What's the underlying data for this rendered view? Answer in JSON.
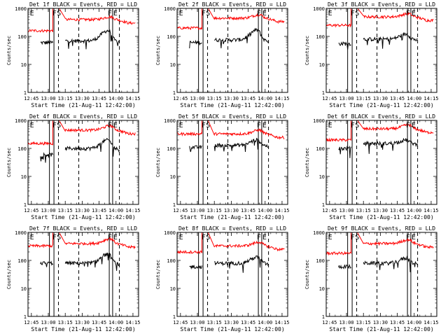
{
  "figure": {
    "background": "#ffffff",
    "axis_color": "#000000",
    "events_color": "#000000",
    "lld_color": "#ff0000"
  },
  "chart_data": [
    {
      "type": "line",
      "title": "Det 1f BLACK = Events, RED = LLD",
      "xlabel": "Start Time (21-Aug-11 12:42:00)",
      "ylabel": "Counts/sec",
      "yscale": "log",
      "ylim": [
        1,
        1000
      ],
      "xlim": [
        "12:42",
        "14:20"
      ],
      "xtick_labels": [
        "12:45",
        "13:00",
        "13:15",
        "13:30",
        "13:45",
        "14:00",
        "14:15"
      ],
      "ytick_labels": [
        "1",
        "10",
        "100",
        "1000"
      ],
      "markers": [
        {
          "label": "E",
          "time": "12:43"
        },
        {
          "label": "F",
          "time": "13:03"
        },
        {
          "label": "S",
          "time": "13:07"
        },
        {
          "label": "F",
          "time": "13:52"
        },
        {
          "label": "E",
          "time": "13:57"
        }
      ],
      "vlines": {
        "solid": [
          "13:01",
          "13:05",
          "13:54",
          "13:57"
        ],
        "dashed": [
          "13:09",
          "13:27",
          "14:03"
        ]
      },
      "series": [
        {
          "name": "Events",
          "color": "#000000",
          "segments": [
            {
              "start": "12:53",
              "end": "13:04",
              "level": 60
            },
            {
              "start": "13:15",
              "end": "14:03",
              "level": 70,
              "peak": {
                "time": "13:53",
                "value": 160
              }
            }
          ]
        },
        {
          "name": "LLD",
          "color": "#ff0000",
          "segments": [
            {
              "start": "12:42",
              "end": "13:04",
              "level": 160
            },
            {
              "start": "13:04",
              "end": "13:09",
              "level": 1100
            },
            {
              "start": "13:15",
              "end": "14:17",
              "level": 400,
              "peak": {
                "time": "13:55",
                "value": 500
              }
            }
          ]
        }
      ]
    },
    {
      "type": "line",
      "title": "Det 2f BLACK = Events, RED = LLD",
      "xlabel": "Start Time (21-Aug-11 12:42:00)",
      "ylabel": "Counts/sec",
      "yscale": "log",
      "ylim": [
        1,
        1000
      ],
      "xlim": [
        "12:42",
        "14:20"
      ],
      "xtick_labels": [
        "12:45",
        "13:00",
        "13:15",
        "13:30",
        "13:45",
        "14:00",
        "14:15"
      ],
      "ytick_labels": [
        "1",
        "10",
        "100",
        "1000"
      ],
      "markers": [
        {
          "label": "E",
          "time": "12:43"
        },
        {
          "label": "F",
          "time": "13:03"
        },
        {
          "label": "S",
          "time": "13:07"
        },
        {
          "label": "F",
          "time": "13:52"
        },
        {
          "label": "E",
          "time": "13:57"
        }
      ],
      "vlines": {
        "solid": [
          "13:01",
          "13:05",
          "13:54",
          "13:57"
        ],
        "dashed": [
          "13:09",
          "13:27",
          "14:03"
        ]
      },
      "series": [
        {
          "name": "Events",
          "color": "#000000",
          "segments": [
            {
              "start": "12:53",
              "end": "13:04",
              "level": 60
            },
            {
              "start": "13:15",
              "end": "14:03",
              "level": 75,
              "peak": {
                "time": "13:53",
                "value": 170
              }
            }
          ]
        },
        {
          "name": "LLD",
          "color": "#ff0000",
          "segments": [
            {
              "start": "12:42",
              "end": "13:04",
              "level": 200
            },
            {
              "start": "13:04",
              "end": "13:09",
              "level": 1100
            },
            {
              "start": "13:15",
              "end": "14:17",
              "level": 450,
              "peak": {
                "time": "13:55",
                "value": 600
              }
            }
          ]
        }
      ]
    },
    {
      "type": "line",
      "title": "Det 3f BLACK = Events, RED = LLD",
      "xlabel": "Start Time (21-Aug-11 12:42:00)",
      "ylabel": "Counts/sec",
      "yscale": "log",
      "ylim": [
        1,
        1000
      ],
      "xlim": [
        "12:42",
        "14:20"
      ],
      "xtick_labels": [
        "12:45",
        "13:00",
        "13:15",
        "13:30",
        "13:45",
        "14:00",
        "14:15"
      ],
      "ytick_labels": [
        "1",
        "10",
        "100",
        "1000"
      ],
      "markers": [
        {
          "label": "E",
          "time": "12:43"
        },
        {
          "label": "F",
          "time": "13:03"
        },
        {
          "label": "S",
          "time": "13:07"
        },
        {
          "label": "F",
          "time": "13:52"
        },
        {
          "label": "E",
          "time": "13:57"
        }
      ],
      "vlines": {
        "solid": [
          "13:01",
          "13:05",
          "13:54",
          "13:57"
        ],
        "dashed": [
          "13:09",
          "13:27",
          "14:03"
        ]
      },
      "series": [
        {
          "name": "Events",
          "color": "#000000",
          "segments": [
            {
              "start": "12:53",
              "end": "13:04",
              "level": 55
            },
            {
              "start": "13:15",
              "end": "14:03",
              "level": 80,
              "peak": {
                "time": "13:53",
                "value": 120
              }
            }
          ]
        },
        {
          "name": "LLD",
          "color": "#ff0000",
          "segments": [
            {
              "start": "12:42",
              "end": "13:04",
              "level": 250
            },
            {
              "start": "13:04",
              "end": "13:09",
              "level": 1100
            },
            {
              "start": "13:15",
              "end": "14:17",
              "level": 500,
              "peak": {
                "time": "13:55",
                "value": 650
              }
            }
          ]
        }
      ]
    },
    {
      "type": "line",
      "title": "Det 4f BLACK = Events, RED = LLD",
      "xlabel": "Start Time (21-Aug-11 12:42:00)",
      "ylabel": "Counts/sec",
      "yscale": "log",
      "ylim": [
        1,
        1000
      ],
      "xlim": [
        "12:42",
        "14:20"
      ],
      "xtick_labels": [
        "12:45",
        "13:00",
        "13:15",
        "13:30",
        "13:45",
        "14:00",
        "14:15"
      ],
      "ytick_labels": [
        "1",
        "10",
        "100",
        "1000"
      ],
      "markers": [
        {
          "label": "E",
          "time": "12:43"
        },
        {
          "label": "F",
          "time": "13:03"
        },
        {
          "label": "S",
          "time": "13:07"
        },
        {
          "label": "F",
          "time": "13:52"
        },
        {
          "label": "E",
          "time": "13:57"
        }
      ],
      "vlines": {
        "solid": [
          "13:01",
          "13:05",
          "13:54",
          "13:57"
        ],
        "dashed": [
          "13:09",
          "13:27",
          "14:03"
        ]
      },
      "series": [
        {
          "name": "Events",
          "color": "#000000",
          "segments": [
            {
              "start": "12:53",
              "end": "13:04",
              "level": 60
            },
            {
              "start": "13:15",
              "end": "14:03",
              "level": 100,
              "peak": {
                "time": "13:53",
                "value": 200
              }
            }
          ]
        },
        {
          "name": "LLD",
          "color": "#ff0000",
          "segments": [
            {
              "start": "12:42",
              "end": "13:04",
              "level": 150
            },
            {
              "start": "13:04",
              "end": "13:09",
              "level": 1100
            },
            {
              "start": "13:15",
              "end": "14:17",
              "level": 450,
              "peak": {
                "time": "13:55",
                "value": 650
              }
            }
          ]
        }
      ]
    },
    {
      "type": "line",
      "title": "Det 5f BLACK = Events, RED = LLD",
      "xlabel": "Start Time (21-Aug-11 12:42:00)",
      "ylabel": "Counts/sec",
      "yscale": "log",
      "ylim": [
        1,
        1000
      ],
      "xlim": [
        "12:42",
        "14:20"
      ],
      "xtick_labels": [
        "12:45",
        "13:00",
        "13:15",
        "13:30",
        "13:45",
        "14:00",
        "14:15"
      ],
      "ytick_labels": [
        "1",
        "10",
        "100",
        "1000"
      ],
      "markers": [
        {
          "label": "E",
          "time": "12:43"
        },
        {
          "label": "F",
          "time": "13:03"
        },
        {
          "label": "S",
          "time": "13:07"
        },
        {
          "label": "F",
          "time": "13:52"
        },
        {
          "label": "E",
          "time": "13:57"
        }
      ],
      "vlines": {
        "solid": [
          "13:01",
          "13:05",
          "13:54",
          "13:57"
        ],
        "dashed": [
          "13:09",
          "13:27",
          "14:03"
        ]
      },
      "series": [
        {
          "name": "Events",
          "color": "#000000",
          "segments": [
            {
              "start": "12:53",
              "end": "13:04",
              "level": 110
            },
            {
              "start": "13:15",
              "end": "14:03",
              "level": 130,
              "peak": {
                "time": "13:53",
                "value": 200
              }
            }
          ]
        },
        {
          "name": "LLD",
          "color": "#ff0000",
          "segments": [
            {
              "start": "12:42",
              "end": "13:04",
              "level": 330
            },
            {
              "start": "13:04",
              "end": "13:09",
              "level": 1100
            },
            {
              "start": "13:15",
              "end": "14:17",
              "level": 330,
              "peak": {
                "time": "13:55",
                "value": 450
              }
            }
          ]
        }
      ]
    },
    {
      "type": "line",
      "title": "Det 6f BLACK = Events, RED = LLD",
      "xlabel": "Start Time (21-Aug-11 12:42:00)",
      "ylabel": "Counts/sec",
      "yscale": "log",
      "ylim": [
        1,
        1000
      ],
      "xlim": [
        "12:42",
        "14:20"
      ],
      "xtick_labels": [
        "12:45",
        "13:00",
        "13:15",
        "13:30",
        "13:45",
        "14:00",
        "14:15"
      ],
      "ytick_labels": [
        "1",
        "10",
        "100",
        "1000"
      ],
      "markers": [
        {
          "label": "E",
          "time": "12:43"
        },
        {
          "label": "F",
          "time": "13:03"
        },
        {
          "label": "S",
          "time": "13:07"
        },
        {
          "label": "F",
          "time": "13:52"
        },
        {
          "label": "E",
          "time": "13:57"
        }
      ],
      "vlines": {
        "solid": [
          "13:01",
          "13:05",
          "13:54",
          "13:57"
        ],
        "dashed": [
          "13:09",
          "13:27",
          "14:03"
        ]
      },
      "series": [
        {
          "name": "Events",
          "color": "#000000",
          "segments": [
            {
              "start": "12:53",
              "end": "13:04",
              "level": 100
            },
            {
              "start": "13:15",
              "end": "14:03",
              "level": 150,
              "peak": {
                "time": "13:53",
                "value": 200
              }
            }
          ]
        },
        {
          "name": "LLD",
          "color": "#ff0000",
          "segments": [
            {
              "start": "12:42",
              "end": "13:04",
              "level": 200
            },
            {
              "start": "13:04",
              "end": "13:09",
              "level": 1100
            },
            {
              "start": "13:15",
              "end": "14:17",
              "level": 500,
              "peak": {
                "time": "13:55",
                "value": 700
              }
            }
          ]
        }
      ]
    },
    {
      "type": "line",
      "title": "Det 7f BLACK = Events, RED = LLD",
      "xlabel": "Start Time (21-Aug-11 12:42:00)",
      "ylabel": "Counts/sec",
      "yscale": "log",
      "ylim": [
        1,
        1000
      ],
      "xlim": [
        "12:42",
        "14:20"
      ],
      "xtick_labels": [
        "12:45",
        "13:00",
        "13:15",
        "13:30",
        "13:45",
        "14:00",
        "14:15"
      ],
      "ytick_labels": [
        "1",
        "10",
        "100",
        "1000"
      ],
      "markers": [
        {
          "label": "E",
          "time": "12:43"
        },
        {
          "label": "F",
          "time": "13:03"
        },
        {
          "label": "S",
          "time": "13:07"
        },
        {
          "label": "F",
          "time": "13:52"
        },
        {
          "label": "E",
          "time": "13:57"
        }
      ],
      "vlines": {
        "solid": [
          "13:01",
          "13:05",
          "13:54",
          "13:57"
        ],
        "dashed": [
          "13:09",
          "13:27",
          "14:03"
        ]
      },
      "series": [
        {
          "name": "Events",
          "color": "#000000",
          "segments": [
            {
              "start": "12:53",
              "end": "13:04",
              "level": 80
            },
            {
              "start": "13:15",
              "end": "14:03",
              "level": 80,
              "peak": {
                "time": "13:53",
                "value": 170
              }
            }
          ]
        },
        {
          "name": "LLD",
          "color": "#ff0000",
          "segments": [
            {
              "start": "12:42",
              "end": "13:04",
              "level": 330
            },
            {
              "start": "13:04",
              "end": "13:09",
              "level": 1100
            },
            {
              "start": "13:15",
              "end": "14:17",
              "level": 400,
              "peak": {
                "time": "13:55",
                "value": 600
              }
            }
          ]
        }
      ]
    },
    {
      "type": "line",
      "title": "Det 8f BLACK = Events, RED = LLD",
      "xlabel": "Start Time (21-Aug-11 12:42:00)",
      "ylabel": "Counts/sec",
      "yscale": "log",
      "ylim": [
        1,
        1000
      ],
      "xlim": [
        "12:42",
        "14:20"
      ],
      "xtick_labels": [
        "12:45",
        "13:00",
        "13:15",
        "13:30",
        "13:45",
        "14:00",
        "14:15"
      ],
      "ytick_labels": [
        "1",
        "10",
        "100",
        "1000"
      ],
      "markers": [
        {
          "label": "E",
          "time": "12:43"
        },
        {
          "label": "F",
          "time": "13:03"
        },
        {
          "label": "S",
          "time": "13:07"
        },
        {
          "label": "F",
          "time": "13:52"
        },
        {
          "label": "E",
          "time": "13:57"
        }
      ],
      "vlines": {
        "solid": [
          "13:01",
          "13:05",
          "13:54",
          "13:57"
        ],
        "dashed": [
          "13:09",
          "13:27",
          "14:03"
        ]
      },
      "series": [
        {
          "name": "Events",
          "color": "#000000",
          "segments": [
            {
              "start": "12:53",
              "end": "13:04",
              "level": 60
            },
            {
              "start": "13:15",
              "end": "14:03",
              "level": 80,
              "peak": {
                "time": "13:53",
                "value": 130
              }
            }
          ]
        },
        {
          "name": "LLD",
          "color": "#ff0000",
          "segments": [
            {
              "start": "12:42",
              "end": "13:04",
              "level": 200
            },
            {
              "start": "13:04",
              "end": "13:09",
              "level": 1100
            },
            {
              "start": "13:15",
              "end": "14:17",
              "level": 330,
              "peak": {
                "time": "13:55",
                "value": 450
              }
            }
          ]
        }
      ]
    },
    {
      "type": "line",
      "title": "Det 9f BLACK = Events, RED = LLD",
      "xlabel": "Start Time (21-Aug-11 12:42:00)",
      "ylabel": "Counts/sec",
      "yscale": "log",
      "ylim": [
        1,
        1000
      ],
      "xlim": [
        "12:42",
        "14:20"
      ],
      "xtick_labels": [
        "12:45",
        "13:00",
        "13:15",
        "13:30",
        "13:45",
        "14:00",
        "14:15"
      ],
      "ytick_labels": [
        "1",
        "10",
        "100",
        "1000"
      ],
      "markers": [
        {
          "label": "E",
          "time": "12:43"
        },
        {
          "label": "F",
          "time": "13:03"
        },
        {
          "label": "S",
          "time": "13:07"
        },
        {
          "label": "F",
          "time": "13:52"
        },
        {
          "label": "E",
          "time": "13:57"
        }
      ],
      "vlines": {
        "solid": [
          "13:01",
          "13:05",
          "13:54",
          "13:57"
        ],
        "dashed": [
          "13:09",
          "13:27",
          "14:03"
        ]
      },
      "series": [
        {
          "name": "Events",
          "color": "#000000",
          "segments": [
            {
              "start": "12:53",
              "end": "13:04",
              "level": 60
            },
            {
              "start": "13:15",
              "end": "14:03",
              "level": 80,
              "peak": {
                "time": "13:53",
                "value": 120
              }
            }
          ]
        },
        {
          "name": "LLD",
          "color": "#ff0000",
          "segments": [
            {
              "start": "12:42",
              "end": "13:04",
              "level": 180
            },
            {
              "start": "13:04",
              "end": "13:09",
              "level": 1100
            },
            {
              "start": "13:15",
              "end": "14:17",
              "level": 400,
              "peak": {
                "time": "13:55",
                "value": 550
              }
            }
          ]
        }
      ]
    }
  ]
}
